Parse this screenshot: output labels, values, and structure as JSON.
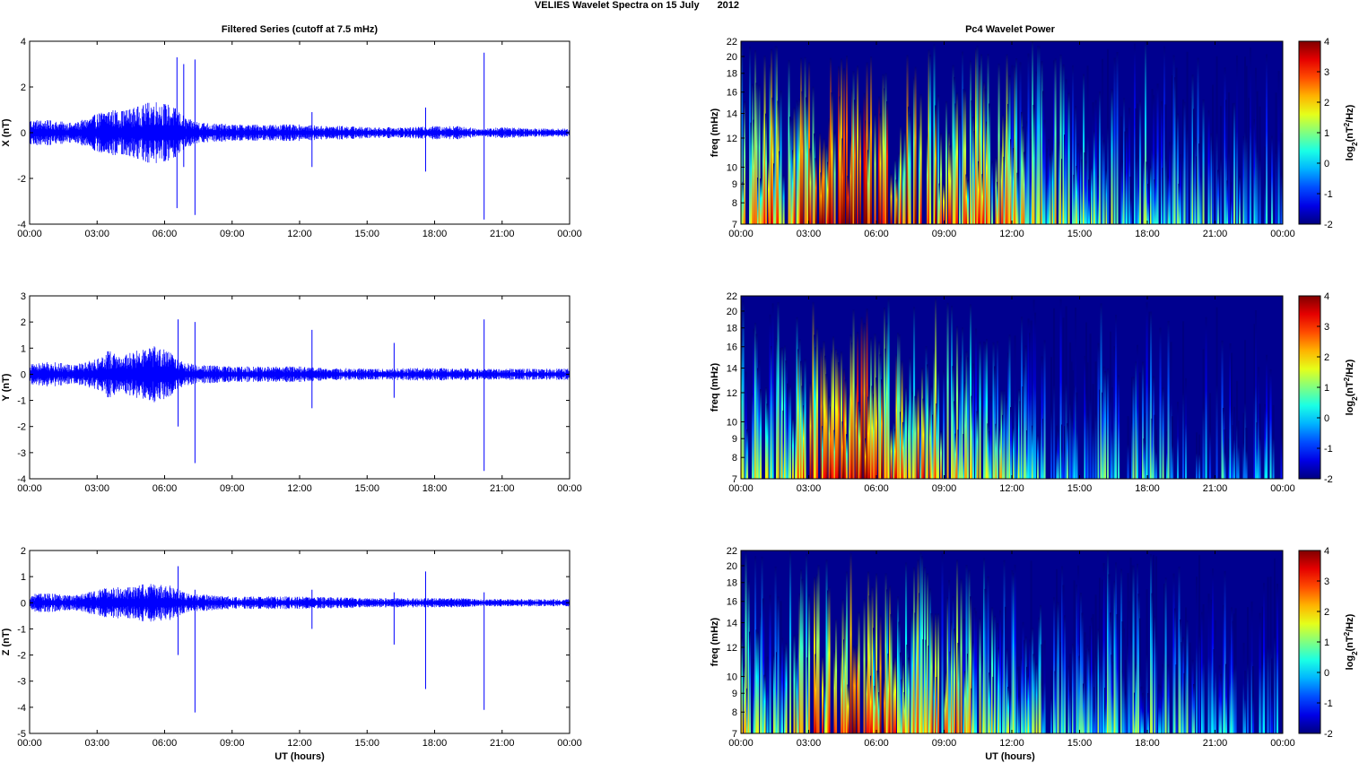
{
  "figure": {
    "title_part1": "VELIES Wavelet Spectra on 15 July",
    "title_part2": "2012",
    "left_column_title": "Filtered Series (cutoff at 7.5 mHz)",
    "right_column_title": "Pc4 Wavelet Power",
    "xlabel": "UT (hours)",
    "colors": {
      "trace": "#0000ff",
      "axes": "#000000",
      "background": "#ffffff",
      "spectrum_bg": "#00008f"
    }
  },
  "chart_data": [
    {
      "type": "line",
      "component": "X",
      "ylabel": "X (nT)",
      "ylim": [
        -4,
        4
      ],
      "yticks": [
        -4,
        -2,
        0,
        2,
        4
      ],
      "xlim_hours": [
        0,
        24
      ],
      "xtick_labels": [
        "00:00",
        "03:00",
        "06:00",
        "09:00",
        "12:00",
        "15:00",
        "18:00",
        "21:00",
        "00:00"
      ],
      "envelope": {
        "hours": [
          0,
          1,
          2,
          3,
          3.5,
          4,
          4.5,
          5,
          5.5,
          6,
          6.5,
          7,
          8,
          9,
          10,
          11,
          12,
          13,
          14,
          15,
          16,
          17,
          18,
          19,
          20,
          21,
          22,
          23,
          24
        ],
        "amplitude_nT": [
          0.5,
          0.45,
          0.35,
          0.7,
          0.9,
          0.8,
          0.9,
          1.0,
          1.2,
          1.1,
          0.9,
          0.5,
          0.35,
          0.3,
          0.3,
          0.3,
          0.3,
          0.25,
          0.25,
          0.2,
          0.2,
          0.2,
          0.25,
          0.25,
          0.15,
          0.2,
          0.18,
          0.15,
          0.15
        ]
      },
      "spikes": [
        {
          "hour": 6.55,
          "min": -3.3,
          "max": 3.3
        },
        {
          "hour": 6.85,
          "min": -1.5,
          "max": 3.0
        },
        {
          "hour": 7.35,
          "min": -3.6,
          "max": 3.2
        },
        {
          "hour": 12.55,
          "min": -1.5,
          "max": 0.9
        },
        {
          "hour": 17.6,
          "min": -1.7,
          "max": 1.1
        },
        {
          "hour": 20.2,
          "min": -3.8,
          "max": 3.5
        }
      ]
    },
    {
      "type": "line",
      "component": "Y",
      "ylabel": "Y (nT)",
      "ylim": [
        -4,
        3
      ],
      "yticks": [
        -4,
        -3,
        -2,
        -1,
        0,
        1,
        2,
        3
      ],
      "xlim_hours": [
        0,
        24
      ],
      "xtick_labels": [
        "00:00",
        "03:00",
        "06:00",
        "09:00",
        "12:00",
        "15:00",
        "18:00",
        "21:00",
        "00:00"
      ],
      "envelope": {
        "hours": [
          0,
          1,
          2,
          3,
          3.5,
          4,
          4.5,
          5,
          5.5,
          6,
          6.5,
          7,
          8,
          9,
          10,
          11,
          12,
          13,
          14,
          15,
          16,
          17,
          18,
          19,
          20,
          21,
          22,
          23,
          24
        ],
        "amplitude_nT": [
          0.35,
          0.4,
          0.3,
          0.5,
          0.8,
          0.6,
          0.7,
          0.8,
          0.9,
          0.8,
          0.6,
          0.35,
          0.3,
          0.25,
          0.25,
          0.25,
          0.25,
          0.2,
          0.2,
          0.18,
          0.18,
          0.2,
          0.2,
          0.2,
          0.18,
          0.18,
          0.18,
          0.18,
          0.18
        ]
      },
      "spikes": [
        {
          "hour": 6.6,
          "min": -2.0,
          "max": 2.1
        },
        {
          "hour": 7.35,
          "min": -3.4,
          "max": 2.0
        },
        {
          "hour": 12.55,
          "min": -1.3,
          "max": 1.7
        },
        {
          "hour": 16.2,
          "min": -0.9,
          "max": 1.2
        },
        {
          "hour": 20.2,
          "min": -3.7,
          "max": 2.1
        }
      ]
    },
    {
      "type": "line",
      "component": "Z",
      "ylabel": "Z (nT)",
      "ylim": [
        -5,
        2
      ],
      "yticks": [
        -5,
        -4,
        -3,
        -2,
        -1,
        0,
        1,
        2
      ],
      "xlim_hours": [
        0,
        24
      ],
      "xtick_labels": [
        "00:00",
        "03:00",
        "06:00",
        "09:00",
        "12:00",
        "15:00",
        "18:00",
        "21:00",
        "00:00"
      ],
      "envelope": {
        "hours": [
          0,
          1,
          2,
          3,
          3.5,
          4,
          4.5,
          5,
          5.5,
          6,
          6.5,
          7,
          8,
          9,
          10,
          11,
          12,
          13,
          14,
          15,
          16,
          17,
          18,
          19,
          20,
          21,
          22,
          23,
          24
        ],
        "amplitude_nT": [
          0.3,
          0.3,
          0.25,
          0.4,
          0.5,
          0.5,
          0.5,
          0.6,
          0.6,
          0.6,
          0.5,
          0.3,
          0.25,
          0.2,
          0.2,
          0.2,
          0.2,
          0.18,
          0.18,
          0.15,
          0.15,
          0.15,
          0.15,
          0.15,
          0.12,
          0.12,
          0.12,
          0.12,
          0.12
        ]
      },
      "spikes": [
        {
          "hour": 6.6,
          "min": -2.0,
          "max": 1.4
        },
        {
          "hour": 7.35,
          "min": -4.2,
          "max": 0.5
        },
        {
          "hour": 12.55,
          "min": -1.0,
          "max": 0.5
        },
        {
          "hour": 16.2,
          "min": -1.6,
          "max": 0.4
        },
        {
          "hour": 17.6,
          "min": -3.3,
          "max": 1.2
        },
        {
          "hour": 20.2,
          "min": -4.1,
          "max": 0.4
        }
      ]
    },
    {
      "type": "heatmap",
      "component": "X",
      "ylabel": "freq (mHz)",
      "yscale": "log",
      "ylim_mHz": [
        7,
        22
      ],
      "yticks_mHz": [
        7,
        8,
        9,
        10,
        12,
        14,
        16,
        18,
        20,
        22
      ],
      "xtick_labels": [
        "00:00",
        "03:00",
        "06:00",
        "09:00",
        "12:00",
        "15:00",
        "18:00",
        "21:00",
        "00:00"
      ],
      "colorbar": {
        "label": "log2(nT2/Hz)",
        "clim": [
          -2,
          4
        ],
        "ticks": [
          -2,
          -1,
          0,
          1,
          2,
          3,
          4
        ]
      },
      "activity_profile": {
        "hours": [
          0,
          1,
          2,
          3,
          4,
          5,
          6,
          7,
          8,
          9,
          10,
          11,
          12,
          13,
          14,
          15,
          16,
          17,
          18,
          19,
          20,
          21,
          22,
          23,
          24
        ],
        "log2_power": [
          2.5,
          2.8,
          2.2,
          3.2,
          3.5,
          3.8,
          4.0,
          3.5,
          2.8,
          2.6,
          2.5,
          2.3,
          2.0,
          1.6,
          1.3,
          1.0,
          0.8,
          0.7,
          0.6,
          0.5,
          0.3,
          0.3,
          0.1,
          -0.2,
          -0.3
        ]
      }
    },
    {
      "type": "heatmap",
      "component": "Y",
      "ylabel": "freq (mHz)",
      "yscale": "log",
      "ylim_mHz": [
        7,
        22
      ],
      "yticks_mHz": [
        7,
        8,
        9,
        10,
        12,
        14,
        16,
        18,
        20,
        22
      ],
      "xtick_labels": [
        "00:00",
        "03:00",
        "06:00",
        "09:00",
        "12:00",
        "15:00",
        "18:00",
        "21:00",
        "00:00"
      ],
      "colorbar": {
        "label": "log2(nT2/Hz)",
        "clim": [
          -2,
          4
        ],
        "ticks": [
          -2,
          -1,
          0,
          1,
          2,
          3,
          4
        ]
      },
      "activity_profile": {
        "hours": [
          0,
          1,
          2,
          3,
          4,
          5,
          6,
          7,
          8,
          9,
          10,
          11,
          12,
          13,
          14,
          15,
          16,
          17,
          18,
          19,
          20,
          21,
          22,
          23,
          24
        ],
        "log2_power": [
          1.0,
          1.8,
          1.5,
          3.0,
          3.3,
          3.8,
          3.6,
          2.8,
          2.5,
          1.8,
          1.6,
          1.4,
          1.2,
          0.6,
          0.4,
          0.5,
          0.2,
          0.1,
          0.3,
          0.1,
          -0.1,
          -0.2,
          -0.4,
          -0.6,
          -0.6
        ]
      }
    },
    {
      "type": "heatmap",
      "component": "Z",
      "ylabel": "freq (mHz)",
      "yscale": "log",
      "ylim_mHz": [
        7,
        22
      ],
      "yticks_mHz": [
        7,
        8,
        9,
        10,
        12,
        14,
        16,
        18,
        20,
        22
      ],
      "xtick_labels": [
        "00:00",
        "03:00",
        "06:00",
        "09:00",
        "12:00",
        "15:00",
        "18:00",
        "21:00",
        "00:00"
      ],
      "colorbar": {
        "label": "log2(nT2/Hz)",
        "clim": [
          -2,
          4
        ],
        "ticks": [
          -2,
          -1,
          0,
          1,
          2,
          3,
          4
        ]
      },
      "activity_profile": {
        "hours": [
          0,
          1,
          2,
          3,
          4,
          5,
          6,
          7,
          8,
          9,
          10,
          11,
          12,
          13,
          14,
          15,
          16,
          17,
          18,
          19,
          20,
          21,
          22,
          23,
          24
        ],
        "log2_power": [
          1.5,
          1.5,
          1.0,
          2.6,
          2.8,
          3.5,
          3.2,
          2.4,
          2.2,
          2.0,
          1.8,
          1.6,
          1.2,
          0.8,
          0.6,
          0.5,
          0.6,
          0.6,
          0.5,
          0.4,
          0.1,
          -0.1,
          -0.4,
          -0.6,
          -0.6
        ]
      }
    }
  ]
}
